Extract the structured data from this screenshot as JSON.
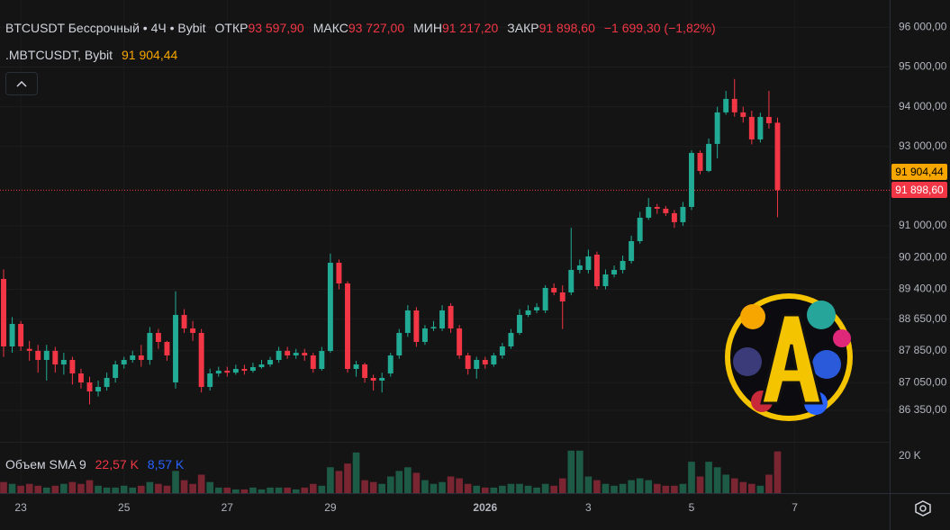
{
  "chart_data": [
    {
      "type": "candlestick",
      "title": "BTCUSDT Бессрочный • 4Ч • Bybit",
      "ohlc_labels": [
        {
          "name": "ОТКР",
          "label": "93 597,90"
        },
        {
          "name": "МАКС",
          "label": "93 727,00"
        },
        {
          "name": "МИН",
          "label": "91 217,20"
        },
        {
          "name": "ЗАКР",
          "label": "91 898,60"
        }
      ],
      "change_label": "−1 699,30 (−1,82%)",
      "mark_price": {
        "name": ".MBTCUSDT, Bybit",
        "value": 91904.44,
        "label": "91 904,44",
        "color": "#f7a600"
      },
      "last_price": {
        "value": 91898.6,
        "label": "91 898,60",
        "color": "#f23645"
      },
      "up_color": "#22ab94",
      "down_color": "#f23645",
      "xlim": [
        -0.42,
        103.04
      ],
      "xticks": [
        {
          "value": 2,
          "label": "23"
        },
        {
          "value": 14,
          "label": "25"
        },
        {
          "value": 26,
          "label": "27"
        },
        {
          "value": 38,
          "label": "29"
        },
        {
          "value": 56,
          "label": "2026"
        },
        {
          "value": 68,
          "label": "3"
        },
        {
          "value": 80,
          "label": "5"
        },
        {
          "value": 92,
          "label": "7"
        }
      ],
      "ylim": [
        85580,
        96690
      ],
      "yticks": [
        {
          "value": 96000,
          "label": "96 000,00"
        },
        {
          "value": 95000,
          "label": "95 000,00"
        },
        {
          "value": 94000,
          "label": "94 000,00"
        },
        {
          "value": 93000,
          "label": "93 000,00"
        },
        {
          "value": 91000,
          "label": "91 000,00"
        },
        {
          "value": 90200,
          "label": "90 200,00"
        },
        {
          "value": 89400,
          "label": "89 400,00"
        },
        {
          "value": 88650,
          "label": "88 650,00"
        },
        {
          "value": 87850,
          "label": "87 850,00"
        },
        {
          "value": 87050,
          "label": "87 050,00"
        },
        {
          "value": 86350,
          "label": "86 350,00"
        }
      ],
      "grid": true,
      "ohlc": [
        [
          89662,
          89900,
          87700,
          87961
        ],
        [
          87961,
          88700,
          87800,
          88528
        ],
        [
          88528,
          88600,
          87850,
          87961
        ],
        [
          87900,
          88100,
          87600,
          87850
        ],
        [
          87850,
          88000,
          87300,
          87621
        ],
        [
          87621,
          88000,
          87100,
          87850
        ],
        [
          87850,
          87950,
          87300,
          87507
        ],
        [
          87507,
          87800,
          87250,
          87621
        ],
        [
          87621,
          87700,
          87000,
          87280
        ],
        [
          87280,
          87400,
          86900,
          87054
        ],
        [
          87054,
          87200,
          86500,
          86827
        ],
        [
          86827,
          87100,
          86700,
          86940
        ],
        [
          86940,
          87300,
          86850,
          87167
        ],
        [
          87167,
          87600,
          87050,
          87507
        ],
        [
          87507,
          87700,
          87400,
          87621
        ],
        [
          87621,
          87850,
          87550,
          87734
        ],
        [
          87734,
          88000,
          87450,
          87621
        ],
        [
          87621,
          88450,
          87500,
          88301
        ],
        [
          88301,
          88400,
          87900,
          88074
        ],
        [
          88074,
          88100,
          87600,
          87734
        ],
        [
          87054,
          89350,
          86900,
          88755
        ],
        [
          88755,
          88900,
          88300,
          88414
        ],
        [
          88414,
          88600,
          88100,
          88301
        ],
        [
          88301,
          88400,
          86800,
          86940
        ],
        [
          86940,
          87400,
          86850,
          87280
        ],
        [
          87280,
          87450,
          87200,
          87349
        ],
        [
          87349,
          87450,
          87200,
          87300
        ],
        [
          87300,
          87500,
          87250,
          87394
        ],
        [
          87394,
          87500,
          87250,
          87349
        ],
        [
          87349,
          87550,
          87300,
          87439
        ],
        [
          87439,
          87620,
          87400,
          87507
        ],
        [
          87507,
          87700,
          87450,
          87621
        ],
        [
          87621,
          87950,
          87550,
          87850
        ],
        [
          87850,
          87950,
          87650,
          87734
        ],
        [
          87734,
          87900,
          87650,
          87800
        ],
        [
          87800,
          87900,
          87600,
          87734
        ],
        [
          87734,
          87800,
          87300,
          87394
        ],
        [
          87394,
          87950,
          87350,
          87847
        ],
        [
          87847,
          90300,
          87800,
          90070
        ],
        [
          90070,
          90150,
          89400,
          89548
        ],
        [
          89548,
          89600,
          87300,
          87394
        ],
        [
          87394,
          87600,
          87200,
          87507
        ],
        [
          87507,
          87550,
          87050,
          87167
        ],
        [
          87167,
          87250,
          86850,
          87100
        ],
        [
          87100,
          87300,
          86800,
          87167
        ],
        [
          87280,
          87800,
          87200,
          87734
        ],
        [
          87734,
          88400,
          87650,
          88301
        ],
        [
          88301,
          89000,
          88200,
          88868
        ],
        [
          88868,
          88950,
          87950,
          88074
        ],
        [
          88074,
          88500,
          88000,
          88414
        ],
        [
          88414,
          88600,
          88350,
          88450
        ],
        [
          88414,
          89000,
          88350,
          88868
        ],
        [
          88981,
          89050,
          88300,
          88414
        ],
        [
          88414,
          88500,
          87650,
          87734
        ],
        [
          87734,
          87800,
          87250,
          87394
        ],
        [
          87394,
          87700,
          87150,
          87621
        ],
        [
          87621,
          87700,
          87400,
          87507
        ],
        [
          87507,
          87800,
          87450,
          87734
        ],
        [
          87734,
          88050,
          87650,
          87961
        ],
        [
          87961,
          88400,
          87900,
          88301
        ],
        [
          88301,
          88900,
          88250,
          88755
        ],
        [
          88755,
          89000,
          88700,
          88868
        ],
        [
          88868,
          89050,
          88800,
          88950
        ],
        [
          88868,
          89500,
          88800,
          89435
        ],
        [
          89435,
          89550,
          89250,
          89322
        ],
        [
          89322,
          89500,
          88400,
          89095
        ],
        [
          89322,
          90950,
          89250,
          89889
        ],
        [
          89889,
          90150,
          89800,
          90002
        ],
        [
          89889,
          90400,
          89800,
          90229
        ],
        [
          90274,
          90350,
          89400,
          89480
        ],
        [
          89480,
          89900,
          89400,
          89775
        ],
        [
          89775,
          90000,
          89700,
          89889
        ],
        [
          89889,
          90250,
          89800,
          90115
        ],
        [
          90115,
          90750,
          90050,
          90614
        ],
        [
          90614,
          91350,
          90550,
          91204
        ],
        [
          91204,
          91700,
          91150,
          91476
        ],
        [
          91476,
          91550,
          91300,
          91431
        ],
        [
          91431,
          91500,
          91250,
          91318
        ],
        [
          91318,
          91400,
          90950,
          91091
        ],
        [
          91091,
          91600,
          91000,
          91476
        ],
        [
          91476,
          92900,
          91400,
          92837
        ],
        [
          92837,
          92900,
          92300,
          92383
        ],
        [
          92383,
          93200,
          92350,
          93064
        ],
        [
          93064,
          94000,
          92700,
          93858
        ],
        [
          93858,
          94400,
          93800,
          94198
        ],
        [
          94198,
          94700,
          93750,
          93858
        ],
        [
          93858,
          94000,
          93600,
          93744
        ],
        [
          93744,
          93900,
          93050,
          93177
        ],
        [
          93177,
          93850,
          93100,
          93744
        ],
        [
          93744,
          94400,
          93450,
          93586
        ],
        [
          93597.9,
          93727,
          91217.2,
          91898.6
        ]
      ]
    },
    {
      "type": "bar",
      "title": "Объем",
      "current_label": "22,57 K",
      "sma": {
        "name": "SMA 9",
        "value": 8570,
        "label": "8,57 K",
        "color": "#2962ff"
      },
      "up_color": "#1e5b46",
      "down_color": "#7a2532",
      "ylim": [
        0,
        26800
      ],
      "yticks": [
        {
          "value": 20000,
          "label": "20 K"
        }
      ],
      "values": [
        6000,
        5000,
        4000,
        5000,
        4000,
        3000,
        4000,
        5000,
        6000,
        5000,
        7000,
        4000,
        3000,
        3000,
        4000,
        3000,
        4000,
        6000,
        5000,
        4000,
        12000,
        7000,
        5000,
        10000,
        6000,
        3000,
        3000,
        2000,
        2000,
        3000,
        2000,
        3000,
        3000,
        3000,
        2000,
        3000,
        5000,
        4000,
        14000,
        12000,
        16000,
        22000,
        7000,
        6000,
        5000,
        9000,
        12000,
        14000,
        11000,
        7000,
        5000,
        6000,
        9000,
        8000,
        5000,
        4000,
        3000,
        3000,
        4000,
        5000,
        5000,
        4000,
        3000,
        5000,
        4000,
        8000,
        23000,
        23000,
        9000,
        7000,
        5000,
        4000,
        5000,
        7000,
        8000,
        7000,
        5000,
        4000,
        4000,
        5000,
        17000,
        9000,
        17000,
        14000,
        10000,
        8000,
        6000,
        5000,
        4000,
        10000,
        22570
      ]
    }
  ]
}
